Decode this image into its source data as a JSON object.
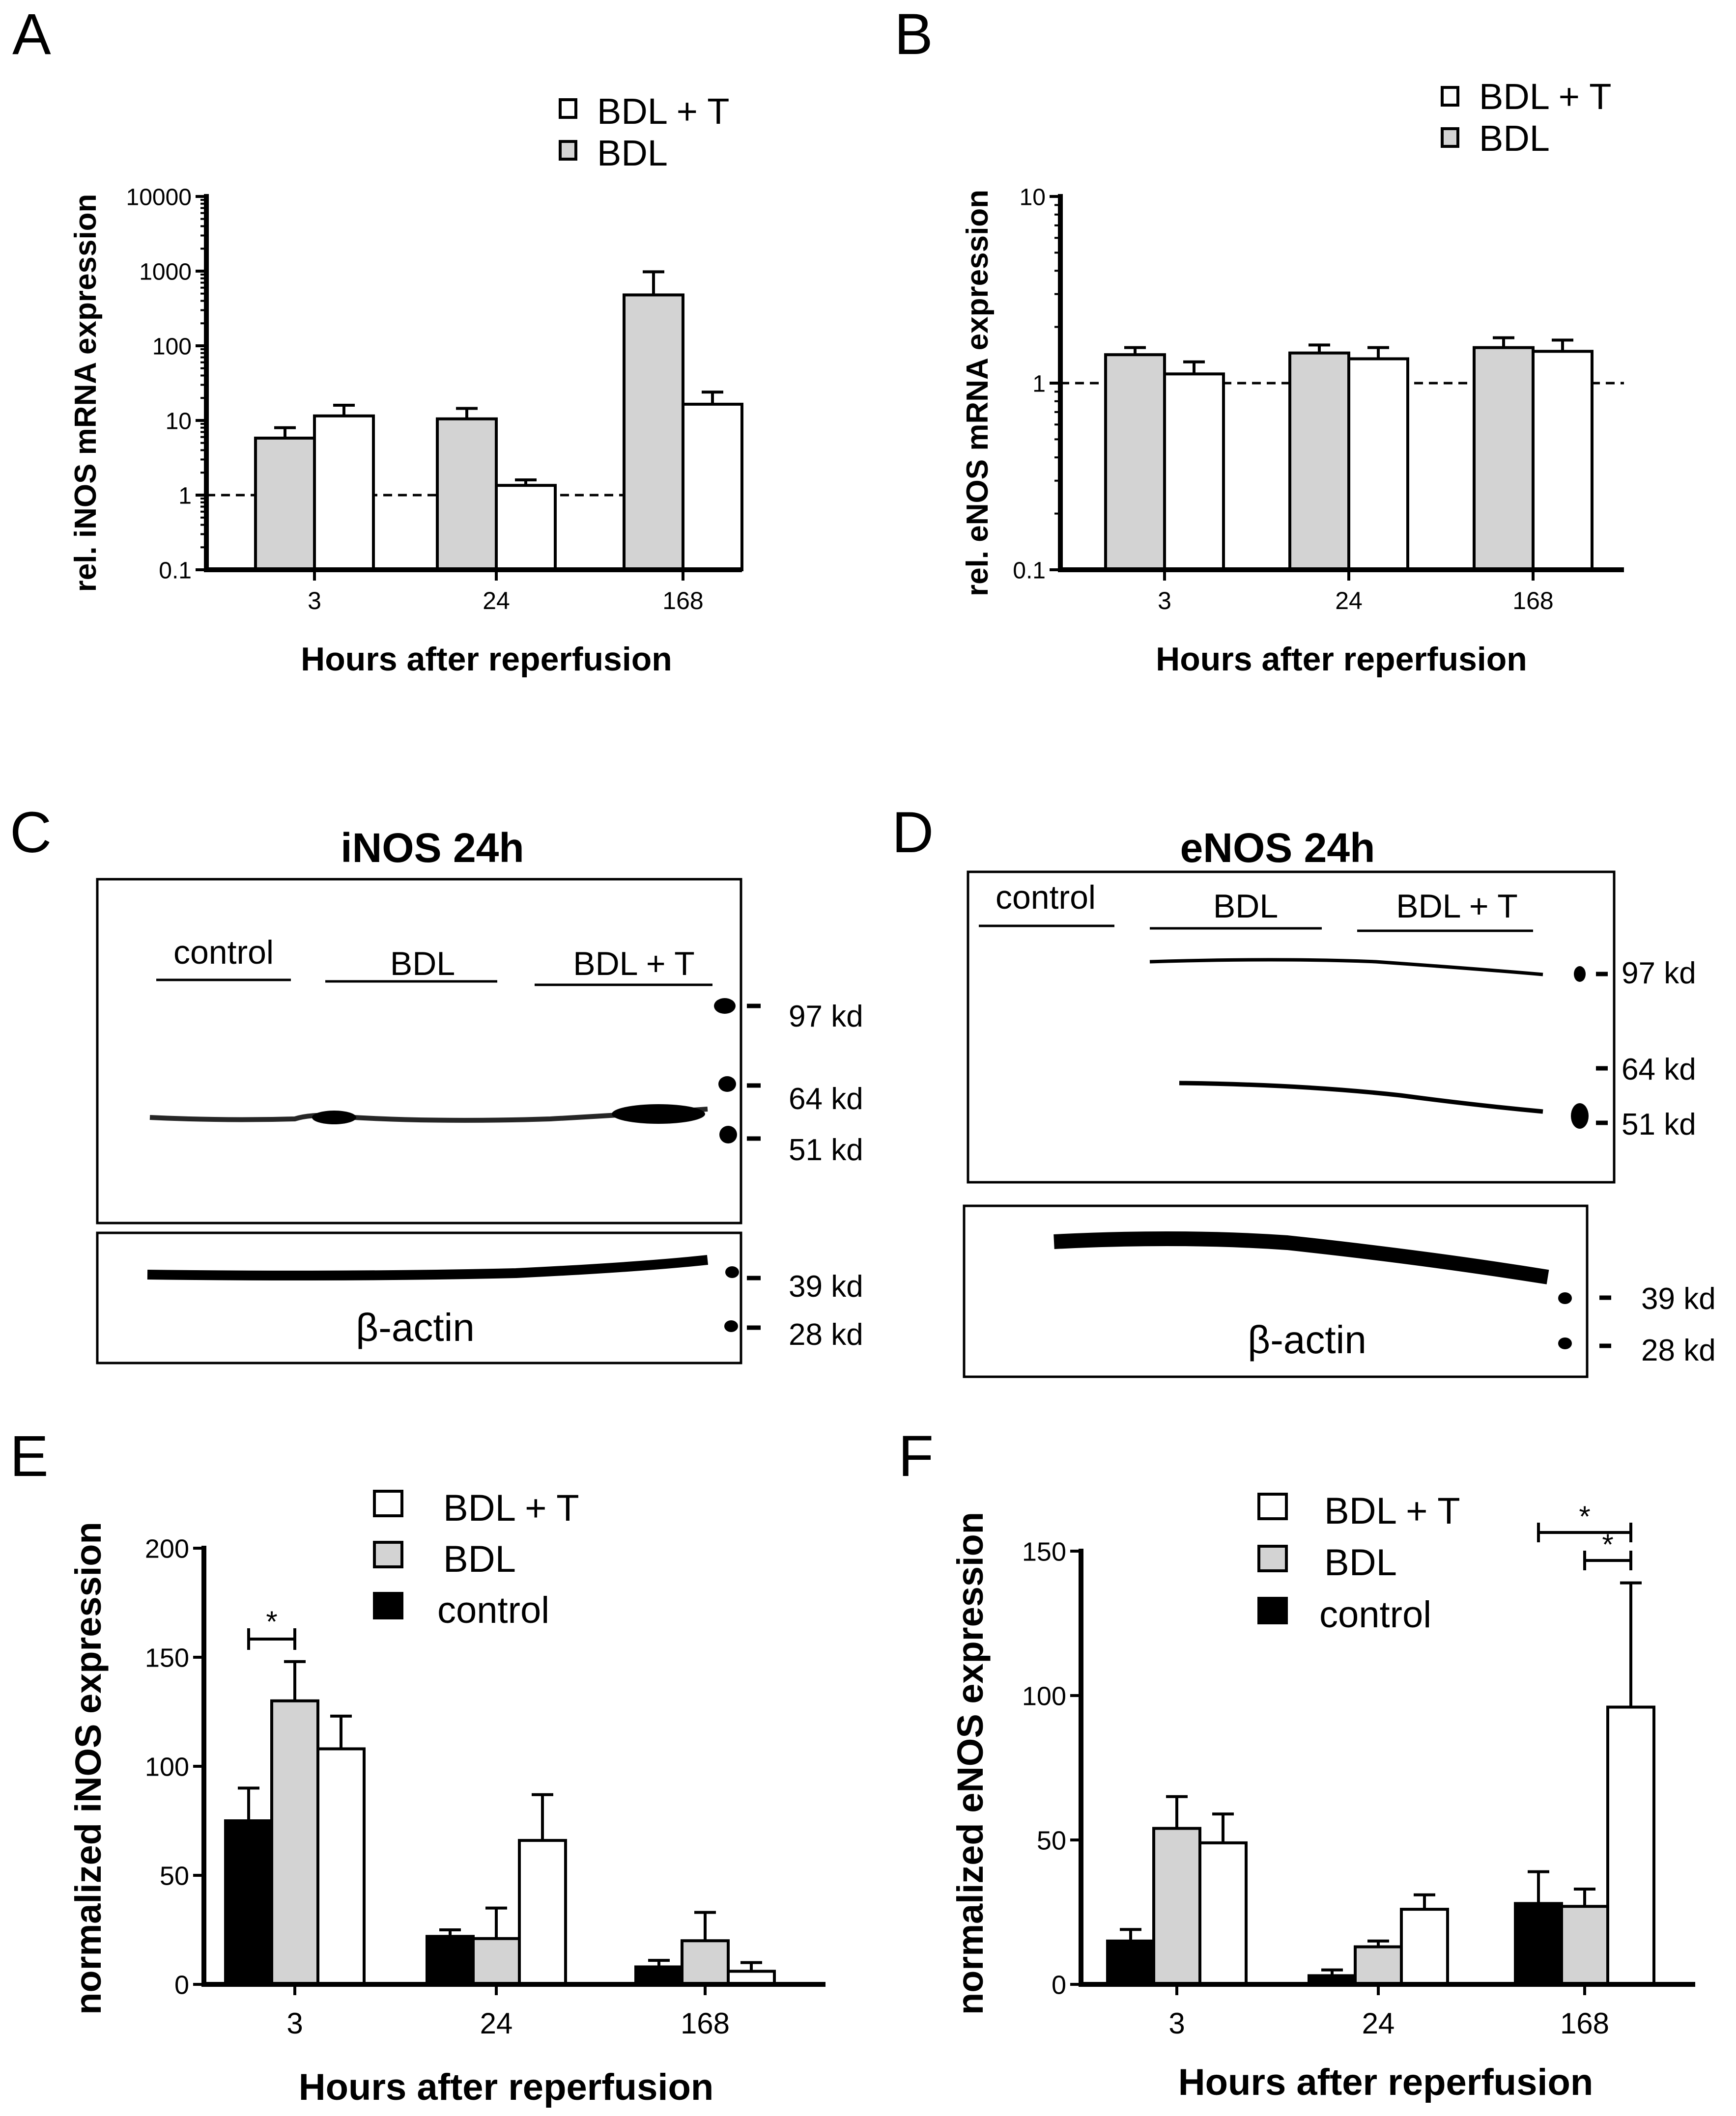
{
  "panel_letters": [
    "A",
    "B",
    "C",
    "D",
    "E",
    "F"
  ],
  "colors": {
    "bdl_t": "#ffffff",
    "bdl": "#d3d3d3",
    "control": "#000000",
    "ink": "#000000",
    "blot_bg": "#ffffff"
  },
  "chart_data": [
    {
      "panel": "A",
      "type": "bar",
      "yscale": "log",
      "title": "",
      "xlabel": "Hours after reperfusion",
      "ylabel": "rel. iNOS mRNA expression",
      "categories": [
        "3",
        "24",
        "168"
      ],
      "ylim": [
        0.1,
        10000
      ],
      "yticks": [
        "0.1",
        "1",
        "10",
        "100",
        "1000",
        "10000"
      ],
      "reference_line": 1,
      "legend": [
        "BDL + T",
        "BDL"
      ],
      "series": [
        {
          "name": "BDL",
          "color": "#d3d3d3",
          "values": [
            5.8,
            10.5,
            480
          ],
          "errors": [
            8,
            14.5,
            980
          ]
        },
        {
          "name": "BDL + T",
          "color": "#ffffff",
          "values": [
            11.5,
            1.35,
            16.5
          ],
          "errors": [
            16,
            1.6,
            24
          ]
        }
      ]
    },
    {
      "panel": "B",
      "type": "bar",
      "yscale": "log",
      "title": "",
      "xlabel": "Hours after reperfusion",
      "ylabel": "rel. eNOS mRNA expression",
      "categories": [
        "3",
        "24",
        "168"
      ],
      "ylim": [
        0.1,
        10
      ],
      "yticks": [
        "0.1",
        "1",
        "10"
      ],
      "reference_line": 1,
      "legend": [
        "BDL + T",
        "BDL"
      ],
      "series": [
        {
          "name": "BDL",
          "color": "#d3d3d3",
          "values": [
            1.42,
            1.45,
            1.55
          ],
          "errors": [
            1.55,
            1.6,
            1.75
          ]
        },
        {
          "name": "BDL + T",
          "color": "#ffffff",
          "values": [
            1.12,
            1.35,
            1.48
          ],
          "errors": [
            1.3,
            1.55,
            1.7
          ]
        }
      ]
    },
    {
      "panel": "E",
      "type": "bar",
      "yscale": "linear",
      "title": "",
      "xlabel": "Hours after reperfusion",
      "ylabel": "normalized iNOS expression",
      "categories": [
        "3",
        "24",
        "168"
      ],
      "ylim": [
        0,
        200
      ],
      "yticks": [
        "0",
        "50",
        "100",
        "150",
        "200"
      ],
      "legend": [
        "BDL + T",
        "BDL",
        "control"
      ],
      "series": [
        {
          "name": "control",
          "color": "#000000",
          "values": [
            75,
            22,
            8
          ],
          "errors": [
            90,
            25,
            11
          ]
        },
        {
          "name": "BDL",
          "color": "#d3d3d3",
          "values": [
            130,
            21,
            20
          ],
          "errors": [
            148,
            35,
            33
          ]
        },
        {
          "name": "BDL + T",
          "color": "#ffffff",
          "values": [
            108,
            66,
            6
          ],
          "errors": [
            123,
            87,
            10
          ]
        }
      ],
      "significance": [
        {
          "label": "*",
          "note": "3 h: control vs BDL"
        }
      ]
    },
    {
      "panel": "F",
      "type": "bar",
      "yscale": "linear",
      "title": "",
      "xlabel": "Hours after reperfusion",
      "ylabel": "normalized eNOS expression",
      "categories": [
        "3",
        "24",
        "168"
      ],
      "ylim": [
        0,
        150
      ],
      "yticks": [
        "0",
        "50",
        "100",
        "150"
      ],
      "legend": [
        "BDL + T",
        "BDL",
        "control"
      ],
      "series": [
        {
          "name": "control",
          "color": "#000000",
          "values": [
            15,
            3,
            28
          ],
          "errors": [
            19,
            5,
            39
          ]
        },
        {
          "name": "BDL",
          "color": "#d3d3d3",
          "values": [
            54,
            13,
            27
          ],
          "errors": [
            65,
            15,
            33
          ]
        },
        {
          "name": "BDL + T",
          "color": "#ffffff",
          "values": [
            49,
            26,
            96
          ],
          "errors": [
            59,
            31,
            139
          ]
        }
      ],
      "significance": [
        {
          "label": "*",
          "note": "168 h: control vs BDL + T"
        },
        {
          "label": "*",
          "note": "168 h: BDL vs BDL + T"
        }
      ]
    }
  ],
  "blots": {
    "C": {
      "title": "iNOS 24h",
      "groups": [
        "control",
        "BDL",
        "BDL + T"
      ],
      "markers": [
        "97 kd",
        "64 kd",
        "51 kd"
      ],
      "loading_label": "β-actin",
      "loading_markers": [
        "39 kd",
        "28 kd"
      ]
    },
    "D": {
      "title": "eNOS 24h",
      "groups": [
        "control",
        "BDL",
        "BDL + T"
      ],
      "markers": [
        "97 kd",
        "64 kd",
        "51 kd"
      ],
      "loading_label": "β-actin",
      "loading_markers": [
        "39 kd",
        "28 kd"
      ]
    }
  }
}
